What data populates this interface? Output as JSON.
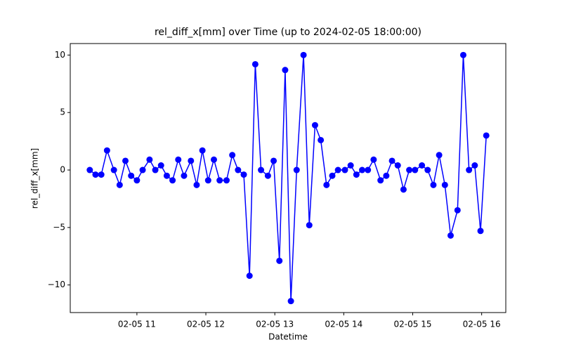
{
  "chart_data": {
    "type": "line",
    "title": "rel_diff_x[mm] over Time (up to 2024-02-05 18:00:00)",
    "x_label": "Datetime",
    "y_label": "rel_diff_x[mm]",
    "x": [
      619,
      624,
      629,
      634,
      640,
      645,
      650,
      655,
      660,
      665,
      671,
      676,
      681,
      686,
      691,
      696,
      701,
      707,
      712,
      717,
      722,
      727,
      732,
      738,
      743,
      748,
      753,
      758,
      763,
      768,
      774,
      779,
      784,
      789,
      794,
      799,
      805,
      810,
      815,
      820,
      825,
      830,
      835,
      841,
      846,
      851,
      856,
      861,
      866,
      872,
      877,
      882,
      887,
      892,
      897,
      902,
      908,
      913,
      918,
      923,
      928,
      933,
      939,
      944,
      949,
      954,
      959,
      964
    ],
    "series": [
      {
        "name": "rel_diff_x[mm]",
        "color": "#0000ff",
        "values": [
          0,
          -0.4,
          -0.4,
          1.7,
          0,
          -1.3,
          0.8,
          -0.5,
          -0.9,
          0,
          0.9,
          0,
          0.4,
          -0.5,
          -0.9,
          0.9,
          -0.5,
          0.8,
          -1.3,
          1.7,
          -0.9,
          0.9,
          -0.9,
          -0.9,
          1.3,
          0,
          -0.4,
          -9.2,
          9.2,
          0,
          -0.5,
          0.8,
          -7.9,
          8.7,
          -11.4,
          0,
          10,
          -4.8,
          3.9,
          2.6,
          -1.3,
          -0.5,
          0,
          0,
          0.4,
          -0.4,
          0,
          0,
          0.9,
          -0.9,
          -0.5,
          0.8,
          0.4,
          -1.7,
          0,
          0,
          0.4,
          0,
          -1.3,
          1.3,
          -1.3,
          -5.7,
          -3.5,
          10,
          0,
          0.4,
          -5.3,
          3.0
        ]
      }
    ],
    "xlim": [
      602,
      981
    ],
    "xticks": [
      {
        "value": 660,
        "label": "02-05 11"
      },
      {
        "value": 720,
        "label": "02-05 12"
      },
      {
        "value": 780,
        "label": "02-05 13"
      },
      {
        "value": 840,
        "label": "02-05 14"
      },
      {
        "value": 900,
        "label": "02-05 15"
      },
      {
        "value": 960,
        "label": "02-05 16"
      }
    ],
    "ylim": [
      -12.4,
      11.0
    ],
    "yticks": [
      {
        "value": -10,
        "label": "−10"
      },
      {
        "value": -5,
        "label": "−5"
      },
      0,
      5,
      10
    ]
  }
}
